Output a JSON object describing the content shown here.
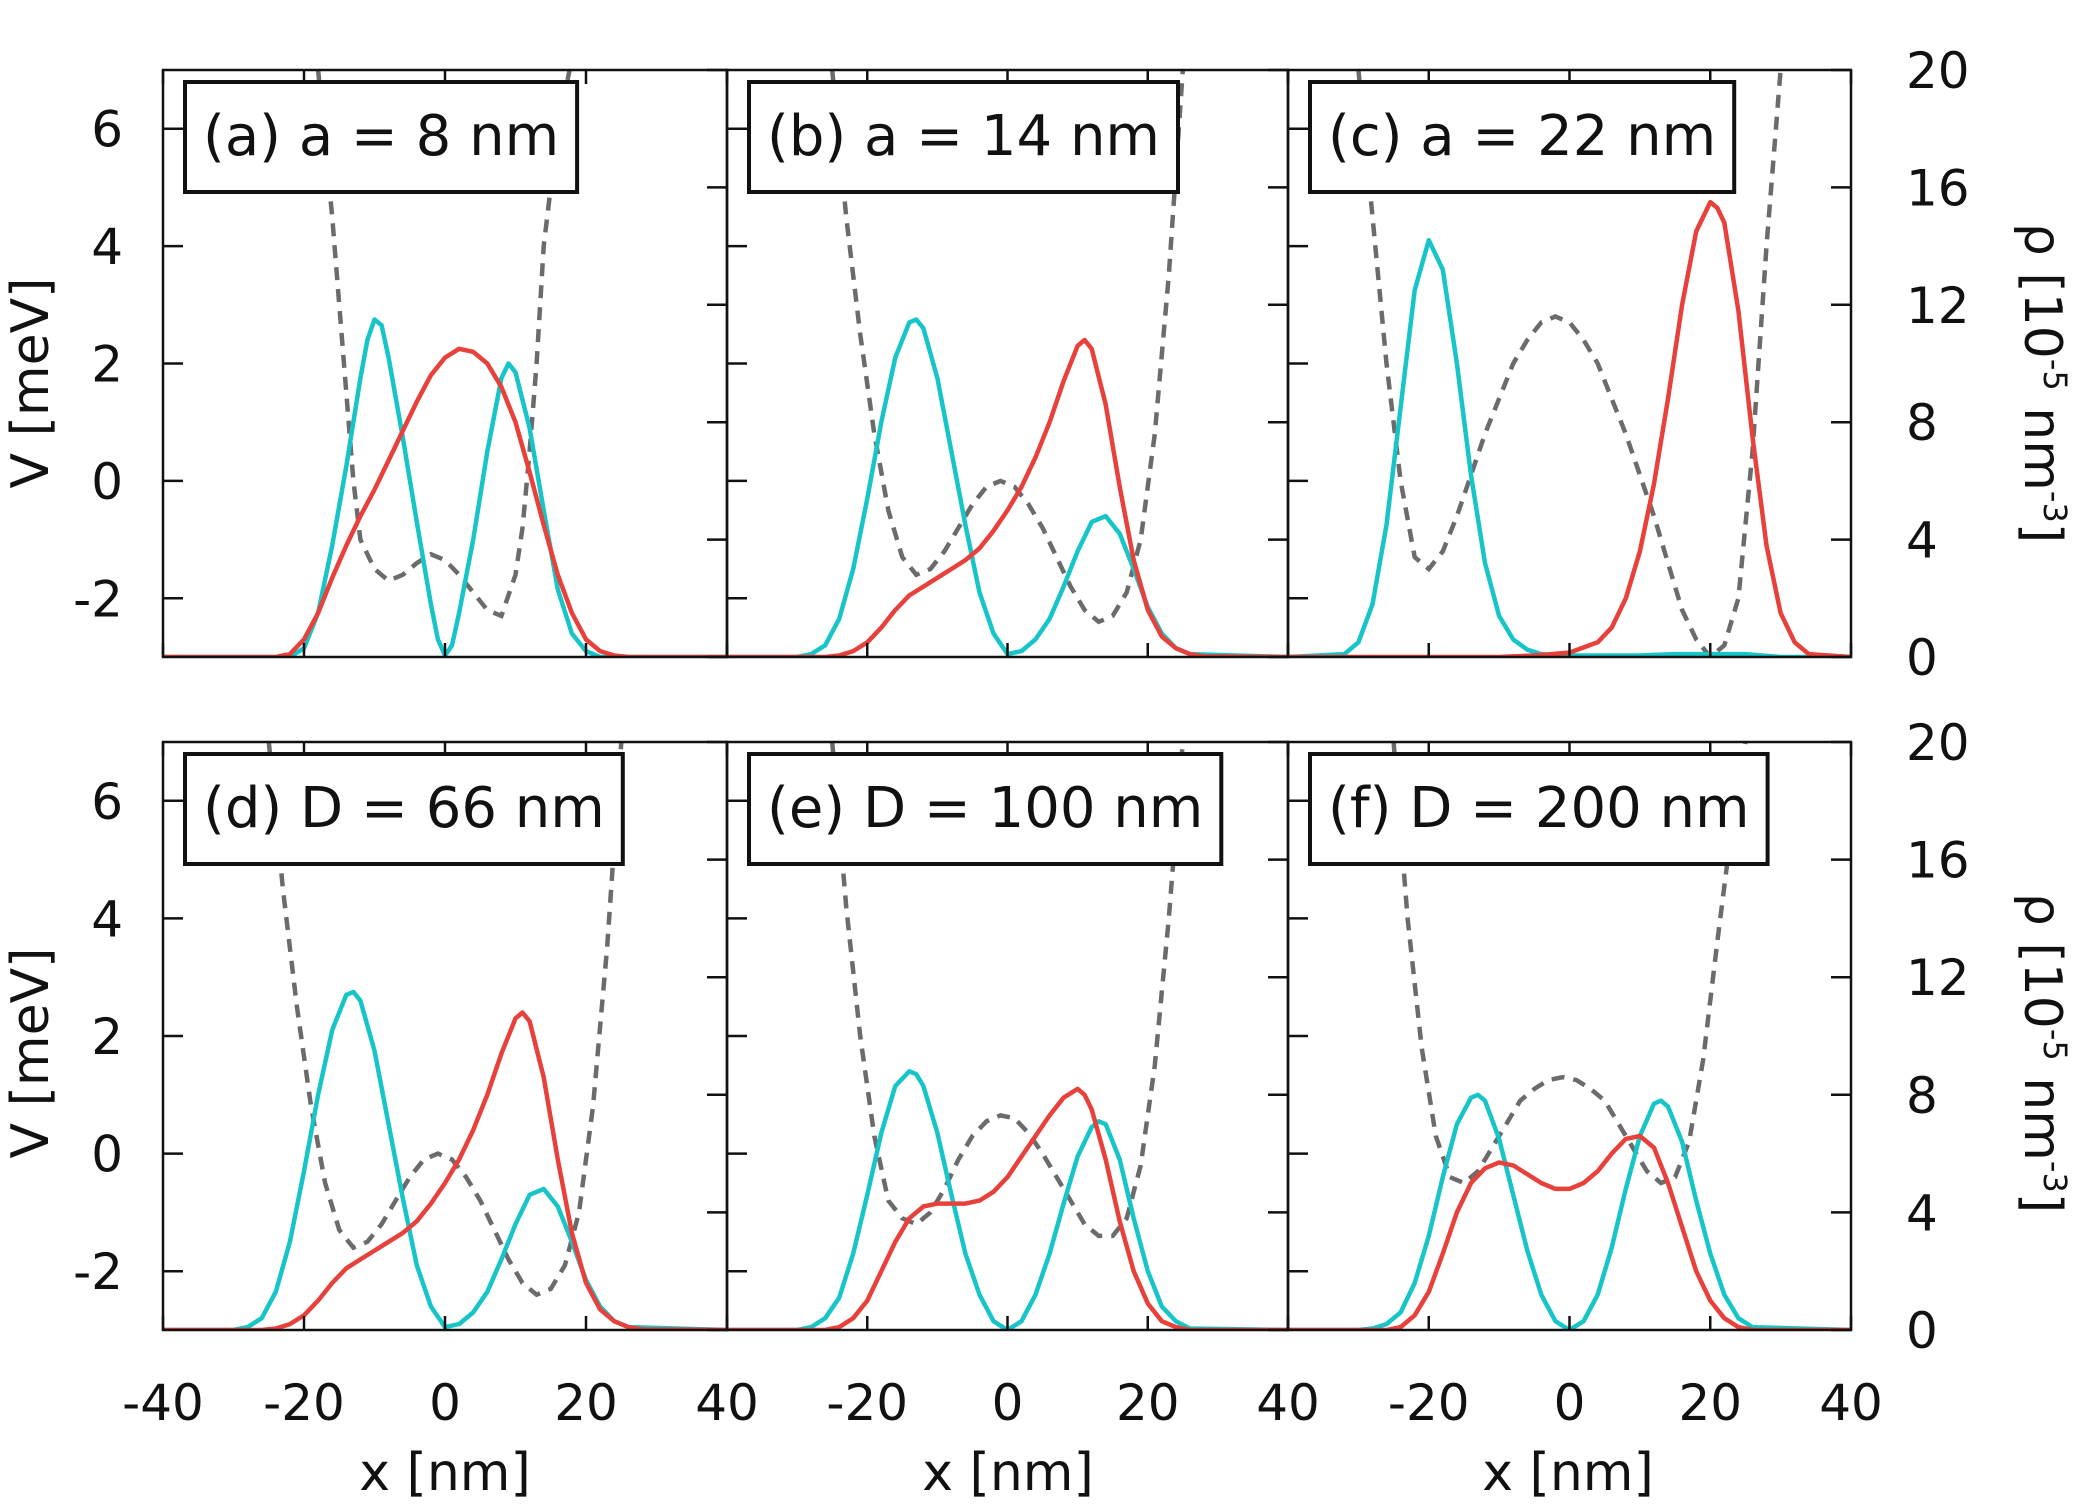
{
  "colors": {
    "cyan": "#17c5c9",
    "red": "#e8403a",
    "dashed": "#6b6b6b",
    "axis": "#111111"
  },
  "chart_data": {
    "type": "line",
    "layout": "2x3 grid of panels with shared axes",
    "x_axis": {
      "label": "x [nm]",
      "range": [
        -40,
        40
      ],
      "ticks": [
        -40,
        -20,
        0,
        20,
        40
      ]
    },
    "y_left": {
      "label": "V [meV]",
      "range": [
        -3,
        7
      ],
      "ticks": [
        -2,
        0,
        2,
        4,
        6
      ]
    },
    "y_right": {
      "label_text": "ρ [10",
      "label_sup1": "-5",
      "label_mid": " nm",
      "label_sup2": "-3",
      "label_end": "]",
      "range": [
        0,
        20
      ],
      "ticks": [
        0,
        4,
        8,
        12,
        16,
        20
      ]
    },
    "series_style": {
      "potential": "dashed gray, left axis (V)",
      "density_1": "solid cyan, right axis (rho)",
      "density_2": "solid red, right axis (rho)"
    },
    "panels": [
      {
        "label": "(a) a = 8 nm",
        "potential": {
          "x": [
            -18,
            -16,
            -14,
            -13,
            -12,
            -10,
            -8,
            -6,
            -4,
            -2,
            0,
            2,
            4,
            6,
            8,
            10,
            11,
            12,
            13,
            14,
            16,
            18
          ],
          "y": [
            7,
            4.5,
            1.5,
            0,
            -1,
            -1.5,
            -1.7,
            -1.6,
            -1.4,
            -1.25,
            -1.35,
            -1.6,
            -1.9,
            -2.2,
            -2.3,
            -1.6,
            -0.8,
            0.5,
            2,
            4,
            6,
            7.2
          ]
        },
        "cyan": {
          "x": [
            -40,
            -22,
            -20,
            -18,
            -16,
            -14,
            -12,
            -11,
            -10,
            -9,
            -8,
            -6,
            -4,
            -2,
            -1,
            0,
            1,
            2,
            4,
            6,
            8,
            9,
            10,
            12,
            14,
            16,
            18,
            20,
            22,
            40
          ],
          "y": [
            0,
            0,
            0.3,
            1.5,
            3.8,
            6.5,
            9.5,
            10.8,
            11.5,
            11.3,
            10.2,
            7.5,
            4.6,
            1.8,
            0.6,
            0.05,
            0.4,
            1.5,
            4,
            7,
            9.5,
            10,
            9.7,
            7.8,
            5,
            2.3,
            0.8,
            0.2,
            0,
            0
          ]
        },
        "red": {
          "x": [
            -40,
            -24,
            -22,
            -20,
            -18,
            -16,
            -14,
            -12,
            -10,
            -8,
            -6,
            -4,
            -2,
            0,
            2,
            4,
            6,
            8,
            10,
            12,
            14,
            16,
            18,
            20,
            22,
            24,
            26,
            40
          ],
          "y": [
            0,
            0,
            0.1,
            0.6,
            1.5,
            2.7,
            3.8,
            4.8,
            5.7,
            6.7,
            7.7,
            8.7,
            9.6,
            10.2,
            10.5,
            10.4,
            10,
            9.2,
            8,
            6.3,
            4.5,
            2.8,
            1.5,
            0.6,
            0.2,
            0.05,
            0,
            0
          ]
        }
      },
      {
        "label": "(b) a = 14 nm",
        "potential": {
          "x": [
            -25,
            -23,
            -21,
            -19,
            -17,
            -15,
            -13,
            -11,
            -9,
            -7,
            -5,
            -3,
            -1,
            1,
            3,
            5,
            7,
            9,
            11,
            13,
            15,
            17,
            19,
            21,
            23,
            25
          ],
          "y": [
            7,
            4.5,
            2.5,
            0.8,
            -0.5,
            -1.3,
            -1.6,
            -1.5,
            -1.2,
            -0.8,
            -0.4,
            -0.1,
            0,
            -0.1,
            -0.4,
            -0.8,
            -1.3,
            -1.8,
            -2.2,
            -2.4,
            -2.3,
            -1.9,
            -1,
            0.8,
            3.5,
            7
          ]
        },
        "cyan": {
          "x": [
            -40,
            -30,
            -28,
            -26,
            -24,
            -22,
            -20,
            -18,
            -16,
            -14,
            -13,
            -12,
            -10,
            -8,
            -6,
            -4,
            -2,
            0,
            2,
            4,
            6,
            8,
            10,
            12,
            14,
            16,
            18,
            20,
            22,
            24,
            26,
            40
          ],
          "y": [
            0,
            0,
            0.1,
            0.4,
            1.3,
            3,
            5.4,
            8,
            10.2,
            11.4,
            11.5,
            11.2,
            9.5,
            7,
            4.5,
            2.2,
            0.8,
            0.1,
            0.2,
            0.6,
            1.3,
            2.4,
            3.6,
            4.6,
            4.8,
            4.2,
            3,
            1.7,
            0.8,
            0.3,
            0.1,
            0
          ]
        },
        "red": {
          "x": [
            -40,
            -26,
            -24,
            -22,
            -20,
            -18,
            -16,
            -14,
            -12,
            -10,
            -8,
            -6,
            -4,
            -2,
            0,
            2,
            4,
            6,
            8,
            10,
            11,
            12,
            14,
            16,
            18,
            20,
            22,
            24,
            26,
            28,
            40
          ],
          "y": [
            0,
            0,
            0.05,
            0.2,
            0.5,
            1,
            1.6,
            2.1,
            2.4,
            2.7,
            3,
            3.3,
            3.7,
            4.3,
            5,
            5.8,
            6.8,
            8,
            9.4,
            10.6,
            10.8,
            10.5,
            8.6,
            5.8,
            3.3,
            1.6,
            0.7,
            0.3,
            0.1,
            0.02,
            0
          ]
        }
      },
      {
        "label": "(c) a = 22 nm",
        "potential": {
          "x": [
            -30,
            -28,
            -26,
            -24,
            -22,
            -20,
            -18,
            -16,
            -14,
            -12,
            -10,
            -8,
            -6,
            -4,
            -2,
            0,
            2,
            4,
            6,
            8,
            10,
            12,
            14,
            16,
            18,
            20,
            22,
            24,
            26,
            28,
            30
          ],
          "y": [
            7,
            4.5,
            2,
            0,
            -1.3,
            -1.5,
            -1.2,
            -0.6,
            0.1,
            0.8,
            1.4,
            2,
            2.4,
            2.7,
            2.8,
            2.7,
            2.4,
            2,
            1.4,
            0.8,
            0.1,
            -0.6,
            -1.4,
            -2.2,
            -2.7,
            -3,
            -2.8,
            -2,
            0.5,
            4,
            7
          ]
        },
        "cyan": {
          "x": [
            -40,
            -32,
            -30,
            -28,
            -26,
            -24,
            -22,
            -20,
            -18,
            -16,
            -14,
            -12,
            -10,
            -8,
            -6,
            -4,
            -2,
            0,
            5,
            10,
            15,
            20,
            25,
            30,
            40
          ],
          "y": [
            0,
            0.1,
            0.5,
            1.8,
            4.5,
            8.5,
            12.5,
            14.2,
            13.2,
            10,
            6.2,
            3.2,
            1.4,
            0.6,
            0.25,
            0.1,
            0.05,
            0.05,
            0.05,
            0.05,
            0.1,
            0.1,
            0.1,
            0,
            0
          ]
        },
        "red": {
          "x": [
            -40,
            -10,
            -5,
            0,
            4,
            6,
            8,
            10,
            12,
            14,
            16,
            18,
            20,
            21,
            22,
            24,
            26,
            28,
            30,
            32,
            34,
            40
          ],
          "y": [
            0,
            0,
            0.05,
            0.15,
            0.5,
            1,
            2,
            3.6,
            5.9,
            8.8,
            12,
            14.5,
            15.5,
            15.3,
            14.8,
            11.8,
            7.5,
            3.8,
            1.5,
            0.5,
            0.1,
            0
          ]
        }
      },
      {
        "label": "(d) D = 66 nm",
        "potential": {
          "x": [
            -25,
            -23,
            -21,
            -19,
            -17,
            -15,
            -13,
            -11,
            -9,
            -7,
            -5,
            -3,
            -1,
            1,
            3,
            5,
            7,
            9,
            11,
            13,
            15,
            17,
            19,
            21,
            23,
            25
          ],
          "y": [
            7,
            4.5,
            2.5,
            0.8,
            -0.5,
            -1.3,
            -1.6,
            -1.5,
            -1.2,
            -0.8,
            -0.4,
            -0.1,
            0,
            -0.1,
            -0.4,
            -0.8,
            -1.3,
            -1.8,
            -2.2,
            -2.4,
            -2.3,
            -1.9,
            -1,
            0.8,
            3.5,
            7
          ]
        },
        "cyan": {
          "x": [
            -40,
            -30,
            -28,
            -26,
            -24,
            -22,
            -20,
            -18,
            -16,
            -14,
            -13,
            -12,
            -10,
            -8,
            -6,
            -4,
            -2,
            0,
            2,
            4,
            6,
            8,
            10,
            12,
            14,
            16,
            18,
            20,
            22,
            24,
            26,
            40
          ],
          "y": [
            0,
            0,
            0.1,
            0.4,
            1.3,
            3,
            5.4,
            8,
            10.2,
            11.4,
            11.5,
            11.2,
            9.5,
            7,
            4.5,
            2.2,
            0.8,
            0.1,
            0.2,
            0.6,
            1.3,
            2.4,
            3.6,
            4.6,
            4.8,
            4.2,
            3,
            1.7,
            0.8,
            0.3,
            0.1,
            0
          ]
        },
        "red": {
          "x": [
            -40,
            -26,
            -24,
            -22,
            -20,
            -18,
            -16,
            -14,
            -12,
            -10,
            -8,
            -6,
            -4,
            -2,
            0,
            2,
            4,
            6,
            8,
            10,
            11,
            12,
            14,
            16,
            18,
            20,
            22,
            24,
            26,
            28,
            40
          ],
          "y": [
            0,
            0,
            0.05,
            0.2,
            0.5,
            1,
            1.6,
            2.1,
            2.4,
            2.7,
            3,
            3.3,
            3.7,
            4.3,
            5,
            5.8,
            6.8,
            8,
            9.4,
            10.6,
            10.8,
            10.5,
            8.6,
            5.8,
            3.3,
            1.6,
            0.7,
            0.3,
            0.1,
            0.02,
            0
          ]
        }
      },
      {
        "label": "(e) D = 100 nm",
        "potential": {
          "x": [
            -25,
            -23,
            -21,
            -19,
            -17,
            -15,
            -13,
            -11,
            -9,
            -7,
            -5,
            -3,
            -1,
            1,
            3,
            5,
            7,
            9,
            11,
            13,
            15,
            17,
            19,
            21,
            23,
            25
          ],
          "y": [
            7,
            4.2,
            2,
            0.3,
            -0.8,
            -1.1,
            -1.2,
            -1,
            -0.6,
            -0.1,
            0.3,
            0.55,
            0.65,
            0.6,
            0.35,
            0,
            -0.4,
            -0.8,
            -1.2,
            -1.4,
            -1.4,
            -1.1,
            -0.2,
            1.5,
            4,
            7
          ]
        },
        "cyan": {
          "x": [
            -40,
            -30,
            -28,
            -26,
            -24,
            -22,
            -20,
            -18,
            -16,
            -14,
            -13,
            -12,
            -10,
            -8,
            -6,
            -4,
            -2,
            0,
            2,
            4,
            6,
            8,
            10,
            12,
            13,
            14,
            16,
            18,
            20,
            22,
            24,
            26,
            40
          ],
          "y": [
            0,
            0,
            0.1,
            0.4,
            1.1,
            2.6,
            4.6,
            6.7,
            8.3,
            8.8,
            8.7,
            8.3,
            6.7,
            4.6,
            2.6,
            1.2,
            0.3,
            0,
            0.3,
            1.2,
            2.6,
            4.3,
            5.9,
            6.9,
            7.1,
            7,
            5.8,
            3.8,
            2,
            0.8,
            0.3,
            0.05,
            0
          ]
        },
        "red": {
          "x": [
            -40,
            -26,
            -24,
            -22,
            -20,
            -18,
            -16,
            -14,
            -12,
            -10,
            -8,
            -6,
            -4,
            -2,
            0,
            2,
            4,
            6,
            8,
            10,
            11,
            12,
            14,
            16,
            18,
            20,
            22,
            24,
            26,
            40
          ],
          "y": [
            0,
            0,
            0.1,
            0.4,
            1,
            2,
            3,
            3.8,
            4.2,
            4.3,
            4.3,
            4.3,
            4.4,
            4.7,
            5.2,
            5.9,
            6.6,
            7.3,
            7.9,
            8.2,
            8,
            7.5,
            5.8,
            3.7,
            2,
            0.9,
            0.3,
            0.1,
            0,
            0
          ]
        }
      },
      {
        "label": "(f) D = 200 nm",
        "potential": {
          "x": [
            -25,
            -23,
            -21,
            -19,
            -17,
            -15,
            -13,
            -11,
            -9,
            -7,
            -5,
            -3,
            -1,
            1,
            3,
            5,
            7,
            9,
            11,
            13,
            15,
            17,
            19,
            21,
            23,
            25
          ],
          "y": [
            7,
            4,
            1.8,
            0.3,
            -0.4,
            -0.5,
            -0.3,
            0.1,
            0.5,
            0.9,
            1.1,
            1.25,
            1.3,
            1.25,
            1.1,
            0.9,
            0.5,
            0.1,
            -0.3,
            -0.5,
            -0.4,
            0.2,
            1.6,
            3.6,
            5.5,
            7
          ]
        },
        "cyan": {
          "x": [
            -40,
            -30,
            -28,
            -26,
            -24,
            -22,
            -20,
            -18,
            -16,
            -14,
            -13,
            -12,
            -10,
            -8,
            -6,
            -4,
            -2,
            0,
            2,
            4,
            6,
            8,
            10,
            12,
            13,
            14,
            16,
            18,
            20,
            22,
            24,
            26,
            40
          ],
          "y": [
            0,
            0,
            0.05,
            0.2,
            0.6,
            1.6,
            3.2,
            5.2,
            7,
            7.9,
            8,
            7.8,
            6.5,
            4.6,
            2.7,
            1.2,
            0.3,
            0,
            0.3,
            1.2,
            2.8,
            4.8,
            6.6,
            7.7,
            7.8,
            7.6,
            6.4,
            4.4,
            2.6,
            1.2,
            0.4,
            0.1,
            0
          ]
        },
        "red": {
          "x": [
            -40,
            -26,
            -24,
            -22,
            -20,
            -18,
            -16,
            -14,
            -12,
            -10,
            -8,
            -6,
            -4,
            -2,
            0,
            2,
            4,
            6,
            8,
            10,
            12,
            14,
            16,
            18,
            20,
            22,
            24,
            26,
            40
          ],
          "y": [
            0,
            0,
            0.1,
            0.5,
            1.3,
            2.6,
            4,
            5,
            5.5,
            5.7,
            5.6,
            5.3,
            5,
            4.8,
            4.8,
            5,
            5.4,
            6,
            6.5,
            6.6,
            6.2,
            5,
            3.5,
            2,
            1,
            0.4,
            0.1,
            0,
            0
          ]
        }
      }
    ]
  }
}
